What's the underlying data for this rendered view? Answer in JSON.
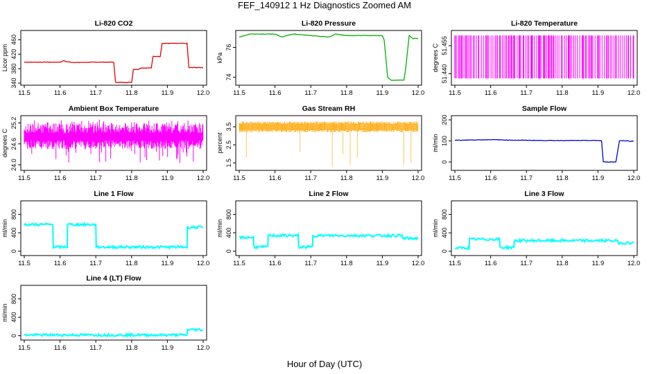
{
  "figure": {
    "title": "FEF_140912  1 Hz Diagnostics Zoomed AM",
    "xlabel": "Hour of Day (UTC)"
  },
  "chart_data": [
    {
      "type": "line",
      "title": "Li-820 CO2",
      "ylabel": "Licor ppm",
      "color": "#e00000",
      "xlim": [
        11.5,
        12.0
      ],
      "ylim": [
        340,
        480
      ],
      "xticks": [
        "11.5",
        "11.6",
        "11.7",
        "11.8",
        "11.9",
        "12.0"
      ],
      "yticks": [
        "340",
        "380",
        "420",
        "460"
      ],
      "series": [
        {
          "x": [
            11.5,
            11.6,
            11.61,
            11.62,
            11.64,
            11.7,
            11.75,
            11.755,
            11.8,
            11.805,
            11.82,
            11.825,
            11.855,
            11.86,
            11.88,
            11.885,
            11.955,
            11.96,
            12.0
          ],
          "y": [
            398,
            398,
            402,
            399,
            397,
            398,
            398,
            342,
            342,
            378,
            378,
            382,
            382,
            414,
            414,
            450,
            450,
            383,
            383
          ]
        }
      ]
    },
    {
      "type": "line",
      "title": "Li-820 Pressure",
      "ylabel": "kPa",
      "color": "#00b000",
      "xlim": [
        11.5,
        12.0
      ],
      "ylim": [
        73.6,
        77.0
      ],
      "xticks": [
        "11.5",
        "11.6",
        "11.7",
        "11.8",
        "11.9",
        "12.0"
      ],
      "yticks": [
        "74",
        "76"
      ],
      "series": [
        {
          "x": [
            11.5,
            11.53,
            11.6,
            11.62,
            11.65,
            11.7,
            11.75,
            11.77,
            11.8,
            11.85,
            11.9,
            11.905,
            11.915,
            11.925,
            11.96,
            11.965,
            11.975,
            11.985,
            12.0
          ],
          "y": [
            76.7,
            76.9,
            76.9,
            76.7,
            76.9,
            76.8,
            76.7,
            76.9,
            76.8,
            76.8,
            76.8,
            76.5,
            74.0,
            73.8,
            73.8,
            74.5,
            76.8,
            76.6,
            76.6
          ]
        }
      ]
    },
    {
      "type": "line",
      "title": "Li-820 Temperature",
      "ylabel": "degrees C",
      "color": "#ff00ff",
      "xlim": [
        11.5,
        12.0
      ],
      "ylim": [
        51.435,
        51.462
      ],
      "xticks": [
        "11.5",
        "11.6",
        "11.7",
        "11.8",
        "11.9",
        "12.0"
      ],
      "yticks": [
        "51.440",
        "51.455"
      ],
      "series": [
        {
          "name": "",
          "values_min": 51.4375,
          "values_max": 51.4605
        }
      ]
    },
    {
      "type": "line",
      "title": "Ambient Box Temperature",
      "ylabel": "degrees C",
      "color": "#ff00ff",
      "xlim": [
        11.5,
        12.0
      ],
      "ylim": [
        23.9,
        25.35
      ],
      "xticks": [
        "11.5",
        "11.6",
        "11.7",
        "11.8",
        "11.9",
        "12.0"
      ],
      "yticks": [
        "24.0",
        "24.6",
        "25.2"
      ],
      "series": [
        {
          "name": "",
          "values_min": 24.0,
          "values_max": 25.3,
          "center": 24.8
        }
      ]
    },
    {
      "type": "line",
      "title": "Gas Stream RH",
      "ylabel": "percent",
      "color": "#ffa500",
      "xlim": [
        11.5,
        12.0
      ],
      "ylim": [
        1.2,
        4.0
      ],
      "xticks": [
        "11.5",
        "11.6",
        "11.7",
        "11.8",
        "11.9",
        "12.0"
      ],
      "yticks": [
        "1.5",
        "2.5",
        "3.5"
      ],
      "series": [
        {
          "name": "",
          "values_min": 3.2,
          "values_max": 3.8,
          "dips_x": [
            11.52,
            11.67,
            11.76,
            11.79,
            11.81,
            11.83,
            11.96,
            11.98
          ],
          "dips_y": [
            1.8,
            2.1,
            1.3,
            2.0,
            1.4,
            1.8,
            1.4,
            1.5
          ]
        }
      ]
    },
    {
      "type": "line",
      "title": "Sample Flow",
      "ylabel": "ml/min",
      "color": "#0000cc",
      "xlim": [
        11.5,
        12.0
      ],
      "ylim": [
        -30,
        210
      ],
      "xticks": [
        "11.5",
        "11.6",
        "11.7",
        "11.8",
        "11.9",
        "12.0"
      ],
      "yticks": [
        "0",
        "100",
        "200"
      ],
      "series": [
        {
          "x": [
            11.5,
            11.6,
            11.65,
            11.7,
            11.75,
            11.9,
            11.91,
            11.915,
            11.95,
            11.955,
            11.96,
            12.0
          ],
          "y": [
            103,
            106,
            104,
            103,
            102,
            102,
            100,
            0,
            0,
            50,
            102,
            98
          ]
        }
      ]
    },
    {
      "type": "line",
      "title": "Line 1 Flow",
      "ylabel": "ml/min",
      "color": "#00ffff",
      "xlim": [
        11.5,
        12.0
      ],
      "ylim": [
        -50,
        1050
      ],
      "xticks": [
        "11.5",
        "11.6",
        "11.7",
        "11.8",
        "11.9",
        "12.0"
      ],
      "yticks": [
        "0",
        "400",
        "800"
      ],
      "series": [
        {
          "x": [
            11.5,
            11.58,
            11.581,
            11.62,
            11.621,
            11.7,
            11.701,
            11.955,
            11.956,
            12.0
          ],
          "y": [
            580,
            580,
            90,
            90,
            580,
            580,
            90,
            90,
            520,
            520
          ]
        }
      ]
    },
    {
      "type": "line",
      "title": "Line 2 Flow",
      "ylabel": "ml/min",
      "color": "#00ffff",
      "xlim": [
        11.5,
        12.0
      ],
      "ylim": [
        -50,
        1050
      ],
      "xticks": [
        "11.5",
        "11.6",
        "11.7",
        "11.8",
        "11.9",
        "12.0"
      ],
      "yticks": [
        "0",
        "400",
        "800"
      ],
      "series": [
        {
          "x": [
            11.5,
            11.54,
            11.541,
            11.58,
            11.581,
            11.665,
            11.666,
            11.705,
            11.706,
            11.955,
            11.956,
            12.0
          ],
          "y": [
            300,
            300,
            90,
            90,
            340,
            340,
            90,
            90,
            340,
            340,
            280,
            280
          ]
        }
      ]
    },
    {
      "type": "line",
      "title": "Line 3 Flow",
      "ylabel": "ml/min",
      "color": "#00ffff",
      "xlim": [
        11.5,
        12.0
      ],
      "ylim": [
        -50,
        1050
      ],
      "xticks": [
        "11.5",
        "11.6",
        "11.7",
        "11.8",
        "11.9",
        "12.0"
      ],
      "yticks": [
        "0",
        "400",
        "800"
      ],
      "series": [
        {
          "x": [
            11.5,
            11.54,
            11.541,
            11.625,
            11.626,
            11.665,
            11.666,
            11.955,
            11.956,
            12.0
          ],
          "y": [
            70,
            70,
            260,
            260,
            80,
            80,
            230,
            230,
            180,
            180
          ]
        }
      ]
    },
    {
      "type": "line",
      "title": "Line 4 (LT) Flow",
      "ylabel": "ml/min",
      "color": "#00ffff",
      "xlim": [
        11.5,
        12.0
      ],
      "ylim": [
        -50,
        1050
      ],
      "xticks": [
        "11.5",
        "11.6",
        "11.7",
        "11.8",
        "11.9",
        "12.0"
      ],
      "yticks": [
        "0",
        "400",
        "800"
      ],
      "series": [
        {
          "x": [
            11.5,
            11.955,
            11.956,
            12.0
          ],
          "y": [
            15,
            15,
            130,
            130
          ]
        }
      ]
    }
  ]
}
